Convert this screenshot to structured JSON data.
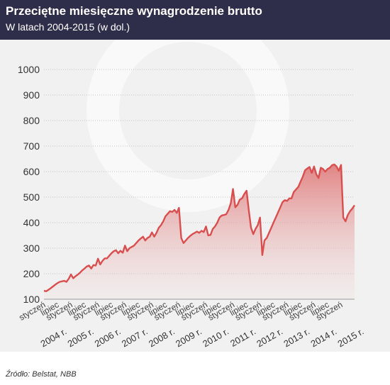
{
  "chart_data": {
    "type": "area",
    "title": "Przeciętne miesięczne wynagrodzenie brutto",
    "subtitle": "W latach 2004-2015 (w dol.)",
    "xlabel": "",
    "ylabel": "",
    "ylim": [
      100,
      1000
    ],
    "yticks": [
      100,
      200,
      300,
      400,
      500,
      600,
      700,
      800,
      900,
      1000
    ],
    "grid": true,
    "legend": "none",
    "month_tick_labels": [
      "styczeń",
      "lipiec"
    ],
    "years": [
      "2004 r.",
      "2005 r.",
      "2006 r.",
      "2007 r.",
      "2008 r.",
      "2009 r.",
      "2010 r.",
      "2011 r.",
      "2012 r.",
      "2013 r.",
      "2014 r.",
      "2015 r."
    ],
    "x_unit": "months since styczeń 2004",
    "series": [
      {
        "name": "",
        "color": "#d94f4f",
        "points": [
          [
            0,
            133
          ],
          [
            1,
            131
          ],
          [
            2,
            137
          ],
          [
            3,
            143
          ],
          [
            4,
            150
          ],
          [
            5,
            157
          ],
          [
            6,
            163
          ],
          [
            7,
            168
          ],
          [
            8,
            170
          ],
          [
            9,
            172
          ],
          [
            10,
            168
          ],
          [
            11,
            180
          ],
          [
            12,
            197
          ],
          [
            13,
            182
          ],
          [
            14,
            190
          ],
          [
            15,
            196
          ],
          [
            16,
            204
          ],
          [
            17,
            213
          ],
          [
            18,
            220
          ],
          [
            19,
            228
          ],
          [
            20,
            232
          ],
          [
            21,
            220
          ],
          [
            22,
            234
          ],
          [
            23,
            232
          ],
          [
            24,
            259
          ],
          [
            25,
            236
          ],
          [
            26,
            250
          ],
          [
            27,
            260
          ],
          [
            28,
            260
          ],
          [
            29,
            270
          ],
          [
            30,
            280
          ],
          [
            31,
            288
          ],
          [
            32,
            292
          ],
          [
            33,
            280
          ],
          [
            34,
            290
          ],
          [
            35,
            282
          ],
          [
            36,
            310
          ],
          [
            37,
            288
          ],
          [
            38,
            300
          ],
          [
            39,
            305
          ],
          [
            40,
            310
          ],
          [
            41,
            320
          ],
          [
            42,
            330
          ],
          [
            43,
            338
          ],
          [
            44,
            345
          ],
          [
            45,
            330
          ],
          [
            46,
            340
          ],
          [
            47,
            345
          ],
          [
            48,
            362
          ],
          [
            49,
            345
          ],
          [
            50,
            360
          ],
          [
            51,
            380
          ],
          [
            52,
            390
          ],
          [
            53,
            405
          ],
          [
            54,
            425
          ],
          [
            55,
            435
          ],
          [
            56,
            445
          ],
          [
            57,
            442
          ],
          [
            58,
            450
          ],
          [
            59,
            438
          ],
          [
            60,
            458
          ],
          [
            61,
            340
          ],
          [
            62,
            320
          ],
          [
            63,
            330
          ],
          [
            64,
            340
          ],
          [
            65,
            348
          ],
          [
            66,
            355
          ],
          [
            67,
            360
          ],
          [
            68,
            365
          ],
          [
            69,
            360
          ],
          [
            70,
            368
          ],
          [
            71,
            363
          ],
          [
            72,
            385
          ],
          [
            73,
            350
          ],
          [
            74,
            352
          ],
          [
            75,
            375
          ],
          [
            76,
            385
          ],
          [
            77,
            400
          ],
          [
            78,
            420
          ],
          [
            79,
            428
          ],
          [
            80,
            430
          ],
          [
            81,
            433
          ],
          [
            82,
            450
          ],
          [
            83,
            475
          ],
          [
            84,
            532
          ],
          [
            85,
            460
          ],
          [
            86,
            470
          ],
          [
            87,
            490
          ],
          [
            88,
            495
          ],
          [
            89,
            512
          ],
          [
            90,
            525
          ],
          [
            91,
            450
          ],
          [
            92,
            380
          ],
          [
            93,
            355
          ],
          [
            94,
            375
          ],
          [
            95,
            390
          ],
          [
            96,
            420
          ],
          [
            97,
            273
          ],
          [
            98,
            330
          ],
          [
            99,
            340
          ],
          [
            100,
            360
          ],
          [
            101,
            380
          ],
          [
            102,
            400
          ],
          [
            103,
            420
          ],
          [
            104,
            440
          ],
          [
            105,
            460
          ],
          [
            106,
            480
          ],
          [
            107,
            488
          ],
          [
            108,
            485
          ],
          [
            109,
            495
          ],
          [
            110,
            495
          ],
          [
            111,
            520
          ],
          [
            112,
            530
          ],
          [
            113,
            540
          ],
          [
            114,
            560
          ],
          [
            115,
            580
          ],
          [
            116,
            605
          ],
          [
            117,
            612
          ],
          [
            118,
            618
          ],
          [
            119,
            595
          ],
          [
            120,
            620
          ],
          [
            121,
            590
          ],
          [
            122,
            575
          ],
          [
            123,
            615
          ],
          [
            124,
            610
          ],
          [
            125,
            600
          ],
          [
            126,
            610
          ],
          [
            127,
            615
          ],
          [
            128,
            625
          ],
          [
            129,
            628
          ],
          [
            130,
            620
          ],
          [
            131,
            603
          ],
          [
            132,
            626
          ],
          [
            133,
            420
          ],
          [
            134,
            405
          ],
          [
            135,
            430
          ],
          [
            136,
            445
          ],
          [
            137,
            455
          ],
          [
            138,
            468
          ]
        ]
      }
    ],
    "source": "Źródło: Belstat, NBB"
  }
}
